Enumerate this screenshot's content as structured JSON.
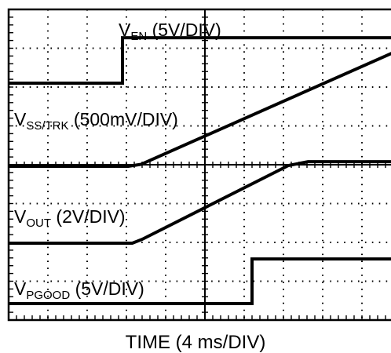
{
  "chart_data": {
    "type": "line",
    "xlabel": "TIME (4 ms/DIV)",
    "x_unit": "ms",
    "x_range": [
      0,
      40
    ],
    "divisions": {
      "x": 10,
      "y": 8
    },
    "grid": true,
    "series": [
      {
        "name": "V_EN (5V/DIV)",
        "label": {
          "main": "V",
          "sub": "EN",
          "scale": " (5V/DIV)"
        },
        "points": [
          [
            0,
            0
          ],
          [
            11.6,
            0
          ],
          [
            11.6,
            1.17
          ],
          [
            40,
            1.17
          ]
        ]
      },
      {
        "name": "V_SS/TRK (500mV/DIV)",
        "label": {
          "main": "V",
          "sub": "SS/TRK",
          "scale": " (500mV/DIV)"
        },
        "points": [
          [
            0,
            0
          ],
          [
            12.2,
            0
          ],
          [
            13.5,
            0.05
          ],
          [
            40,
            3.02
          ]
        ]
      },
      {
        "name": "V_OUT (2V/DIV)",
        "label": {
          "main": "V",
          "sub": "OUT",
          "scale": " (2V/DIV)"
        },
        "points": [
          [
            0,
            0
          ],
          [
            12.6,
            0
          ],
          [
            13.6,
            0.1
          ],
          [
            28.5,
            2.0
          ],
          [
            30.5,
            2.1
          ],
          [
            40,
            2.1
          ]
        ]
      },
      {
        "name": "V_PGOOD (5V/DIV)",
        "label": {
          "main": "V",
          "sub": "PGOOD",
          "scale": " (5V/DIV)"
        },
        "points": [
          [
            0,
            0
          ],
          [
            24.8,
            0
          ],
          [
            24.8,
            1.15
          ],
          [
            40,
            1.15
          ]
        ]
      }
    ]
  }
}
